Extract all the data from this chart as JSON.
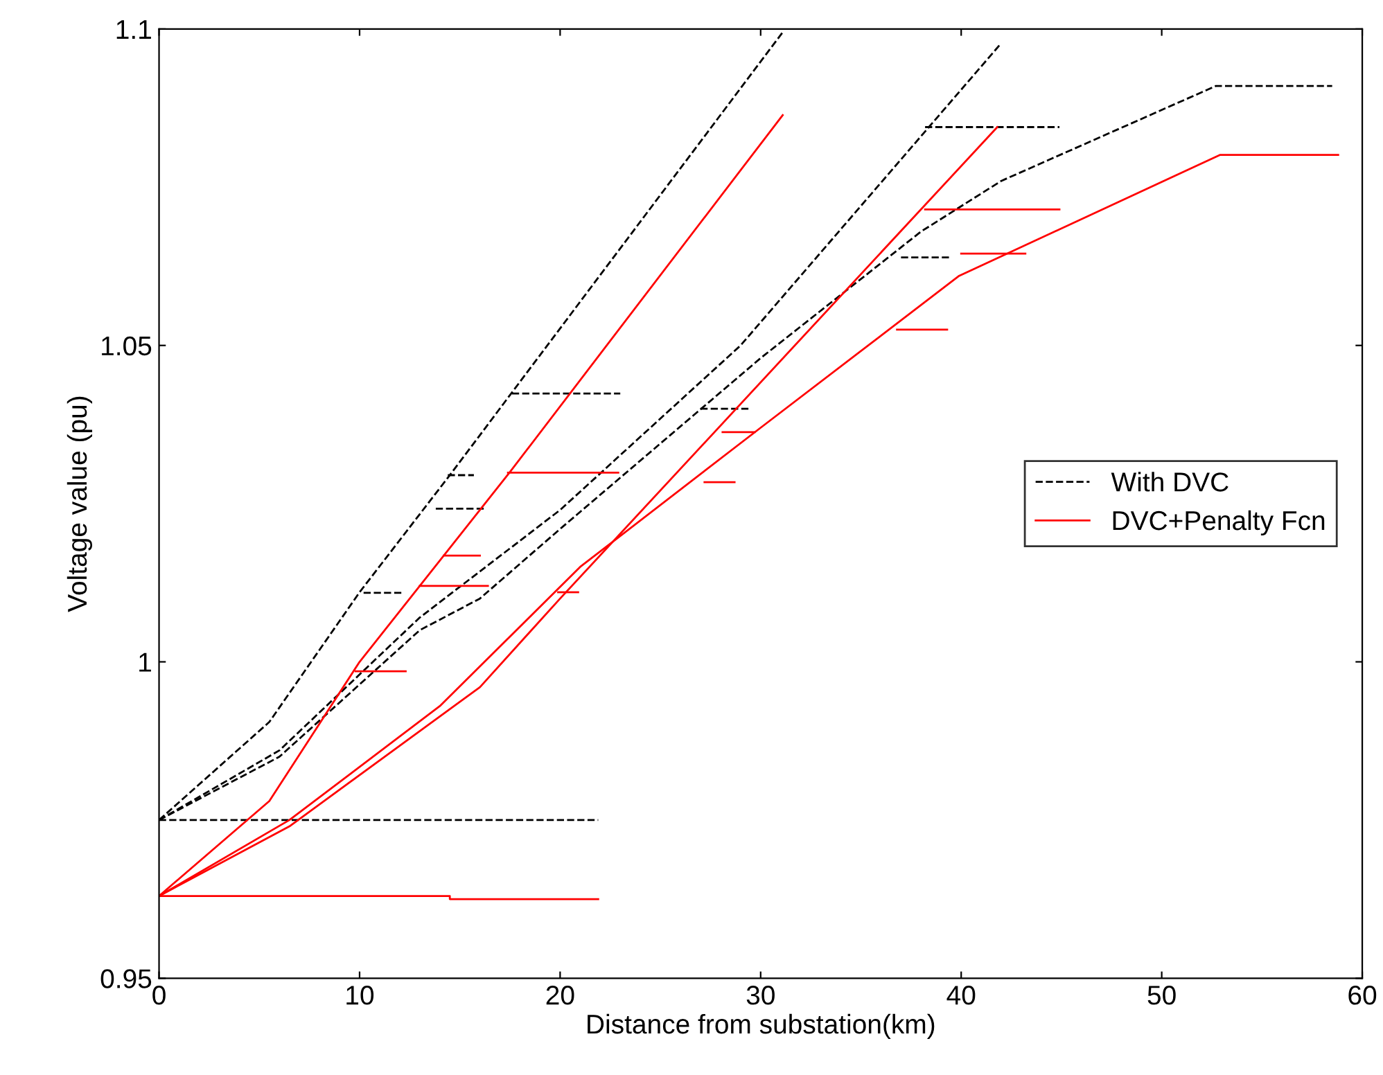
{
  "chart_data": {
    "type": "line",
    "xlabel": "Distance from substation(km)",
    "ylabel": "Voltage value (pu)",
    "xlim": [
      0,
      60
    ],
    "xticks": [
      0,
      10,
      20,
      30,
      40,
      50,
      60
    ],
    "ylim": [
      0.95,
      1.1
    ],
    "yticks": [
      0.95,
      1,
      1.05,
      1.1
    ],
    "grid": false,
    "legend": "center right",
    "marker": "none",
    "series": [
      {
        "name": "With DVC",
        "color": "#000000",
        "line_style": "dashed",
        "x": [
          0,
          5.5,
          10,
          14.5,
          31.1
        ],
        "values": [
          0.975,
          0.9905,
          1.011,
          1.0295,
          1.0995
        ]
      },
      {
        "color": "#000000",
        "line_style": "dashed",
        "x": [
          0,
          6,
          10,
          13,
          20,
          29,
          41.9
        ],
        "values": [
          0.975,
          0.986,
          0.998,
          1.007,
          1.024,
          1.05,
          1.0974
        ]
      },
      {
        "color": "#000000",
        "line_style": "dashed",
        "x": [
          0,
          6,
          13,
          16,
          20,
          30,
          38,
          42,
          52.7,
          58.5
        ],
        "values": [
          0.975,
          0.985,
          1.005,
          1.01,
          1.021,
          1.048,
          1.068,
          1.076,
          1.091,
          1.091
        ]
      },
      {
        "color": "#000000",
        "line_style": "dashed",
        "x": [
          0,
          21.9
        ],
        "values": [
          0.975,
          0.975
        ]
      },
      {
        "color": "#000000",
        "line_style": "dashed",
        "x": [
          17.6,
          23.0
        ],
        "values": [
          1.0424,
          1.0424
        ]
      },
      {
        "color": "#000000",
        "line_style": "dashed",
        "x": [
          14.4,
          15.7
        ],
        "values": [
          1.0295,
          1.0295
        ]
      },
      {
        "color": "#000000",
        "line_style": "dashed",
        "x": [
          13.8,
          16.2
        ],
        "values": [
          1.0242,
          1.0242
        ]
      },
      {
        "color": "#000000",
        "line_style": "dashed",
        "x": [
          10.2,
          12.2
        ],
        "values": [
          1.0109,
          1.0109
        ]
      },
      {
        "color": "#000000",
        "line_style": "dashed",
        "x": [
          38.2,
          44.9
        ],
        "values": [
          1.0845,
          1.0845
        ]
      },
      {
        "color": "#000000",
        "line_style": "dashed",
        "x": [
          37.0,
          39.4
        ],
        "values": [
          1.0639,
          1.0639
        ]
      },
      {
        "color": "#000000",
        "line_style": "dashed",
        "x": [
          27.0,
          29.5
        ],
        "values": [
          1.04,
          1.04
        ]
      },
      {
        "name": "DVC+Penalty Fcn",
        "color": "#ff0000",
        "line_style": "solid",
        "x": [
          0,
          5.5,
          10,
          17.5,
          31.1
        ],
        "values": [
          0.963,
          0.978,
          1.0,
          1.03,
          1.0864
        ]
      },
      {
        "color": "#ff0000",
        "line_style": "solid",
        "x": [
          0,
          6.5,
          16,
          20,
          41.8
        ],
        "values": [
          0.963,
          0.974,
          0.996,
          1.01,
          1.0845
        ]
      },
      {
        "color": "#ff0000",
        "line_style": "solid",
        "x": [
          0,
          6.5,
          14,
          21,
          30,
          39.9,
          52.9,
          58.8
        ],
        "values": [
          0.963,
          0.975,
          0.993,
          1.015,
          1.037,
          1.061,
          1.0801,
          1.0801
        ]
      },
      {
        "color": "#ff0000",
        "line_style": "solid",
        "x": [
          0,
          14.5,
          14.5,
          21.9
        ],
        "values": [
          0.963,
          0.963,
          0.9625,
          0.9625
        ]
      },
      {
        "color": "#ff0000",
        "line_style": "solid",
        "x": [
          9.8,
          12.3
        ],
        "values": [
          0.9985,
          0.9985
        ]
      },
      {
        "color": "#ff0000",
        "line_style": "solid",
        "x": [
          17.4,
          22.9
        ],
        "values": [
          1.0299,
          1.0299
        ]
      },
      {
        "color": "#ff0000",
        "line_style": "solid",
        "x": [
          14.2,
          16.0
        ],
        "values": [
          1.0168,
          1.0168
        ]
      },
      {
        "color": "#ff0000",
        "line_style": "solid",
        "x": [
          13.0,
          16.4
        ],
        "values": [
          1.012,
          1.012
        ]
      },
      {
        "color": "#ff0000",
        "line_style": "solid",
        "x": [
          38.2,
          44.9
        ],
        "values": [
          1.0715,
          1.0715
        ]
      },
      {
        "color": "#ff0000",
        "line_style": "solid",
        "x": [
          28.1,
          29.7
        ],
        "values": [
          1.0363,
          1.0363
        ]
      },
      {
        "color": "#ff0000",
        "line_style": "solid",
        "x": [
          19.9,
          20.9
        ],
        "values": [
          1.011,
          1.011
        ]
      },
      {
        "color": "#ff0000",
        "line_style": "solid",
        "x": [
          40.0,
          43.2
        ],
        "values": [
          1.0645,
          1.0645
        ]
      },
      {
        "color": "#ff0000",
        "line_style": "solid",
        "x": [
          36.8,
          39.3
        ],
        "values": [
          1.0525,
          1.0525
        ]
      },
      {
        "color": "#ff0000",
        "line_style": "solid",
        "x": [
          27.2,
          28.7
        ],
        "values": [
          1.0284,
          1.0284
        ]
      }
    ]
  }
}
